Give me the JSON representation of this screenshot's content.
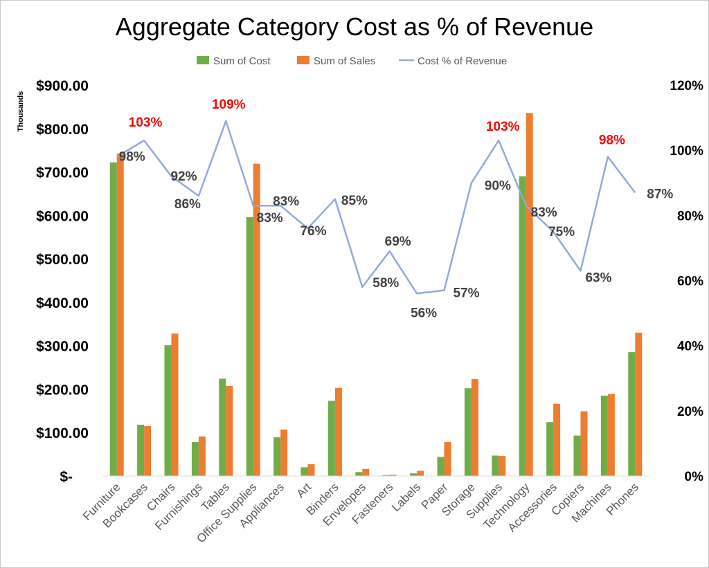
{
  "chart_data": {
    "type": "bar",
    "title": "Aggregate Category Cost as % of Revenue",
    "categories": [
      "Furniture",
      "Bookcases",
      "Chairs",
      "Furnishings",
      "Tables",
      "Office Supplies",
      "Appliances",
      "Art",
      "Binders",
      "Envelopes",
      "Fasteners",
      "Labels",
      "Paper",
      "Storage",
      "Supplies",
      "Technology",
      "Accessories",
      "Copiers",
      "Machines",
      "Phones"
    ],
    "series": [
      {
        "name": "Sum of Cost",
        "type": "bar",
        "axis": "left",
        "color": "#70AD47",
        "values": [
          722,
          118,
          301,
          78,
          224,
          596,
          89,
          20,
          173,
          9,
          2,
          6,
          44,
          202,
          47,
          690,
          124,
          93,
          185,
          285
        ]
      },
      {
        "name": "Sum of Sales",
        "type": "bar",
        "axis": "left",
        "color": "#ED7D31",
        "values": [
          742,
          115,
          328,
          91,
          207,
          719,
          107,
          27,
          203,
          16,
          3,
          12,
          78,
          223,
          46,
          836,
          166,
          149,
          189,
          330
        ]
      },
      {
        "name": "Cost % of Revenue",
        "type": "line",
        "axis": "right",
        "color": "#8FAADC",
        "values": [
          98,
          103,
          92,
          86,
          109,
          83,
          83,
          76,
          85,
          58,
          69,
          56,
          57,
          90,
          103,
          83,
          75,
          63,
          98,
          87
        ]
      }
    ],
    "data_labels": [
      "98%",
      "103%",
      "92%",
      "86%",
      "109%",
      "83%",
      "83%",
      "76%",
      "85%",
      "58%",
      "69%",
      "56%",
      "57%",
      "90%",
      "103%",
      "83%",
      "75%",
      "63%",
      "98%",
      "87%"
    ],
    "highlight_labels": [
      "103%",
      "109%",
      "103%",
      "98%"
    ],
    "highlight_color": "#FF0000",
    "label_color": "#404040",
    "y_left": {
      "ticks": [
        "$-",
        "$100.00",
        "$200.00",
        "$300.00",
        "$400.00",
        "$500.00",
        "$600.00",
        "$700.00",
        "$800.00",
        "$900.00"
      ],
      "ylim": [
        0,
        900
      ],
      "unit_label": "Thousands"
    },
    "y_right": {
      "ticks": [
        "0%",
        "20%",
        "40%",
        "60%",
        "80%",
        "100%",
        "120%"
      ],
      "ylim": [
        0,
        120
      ]
    },
    "legend": {
      "position": "top"
    },
    "grid": false
  }
}
